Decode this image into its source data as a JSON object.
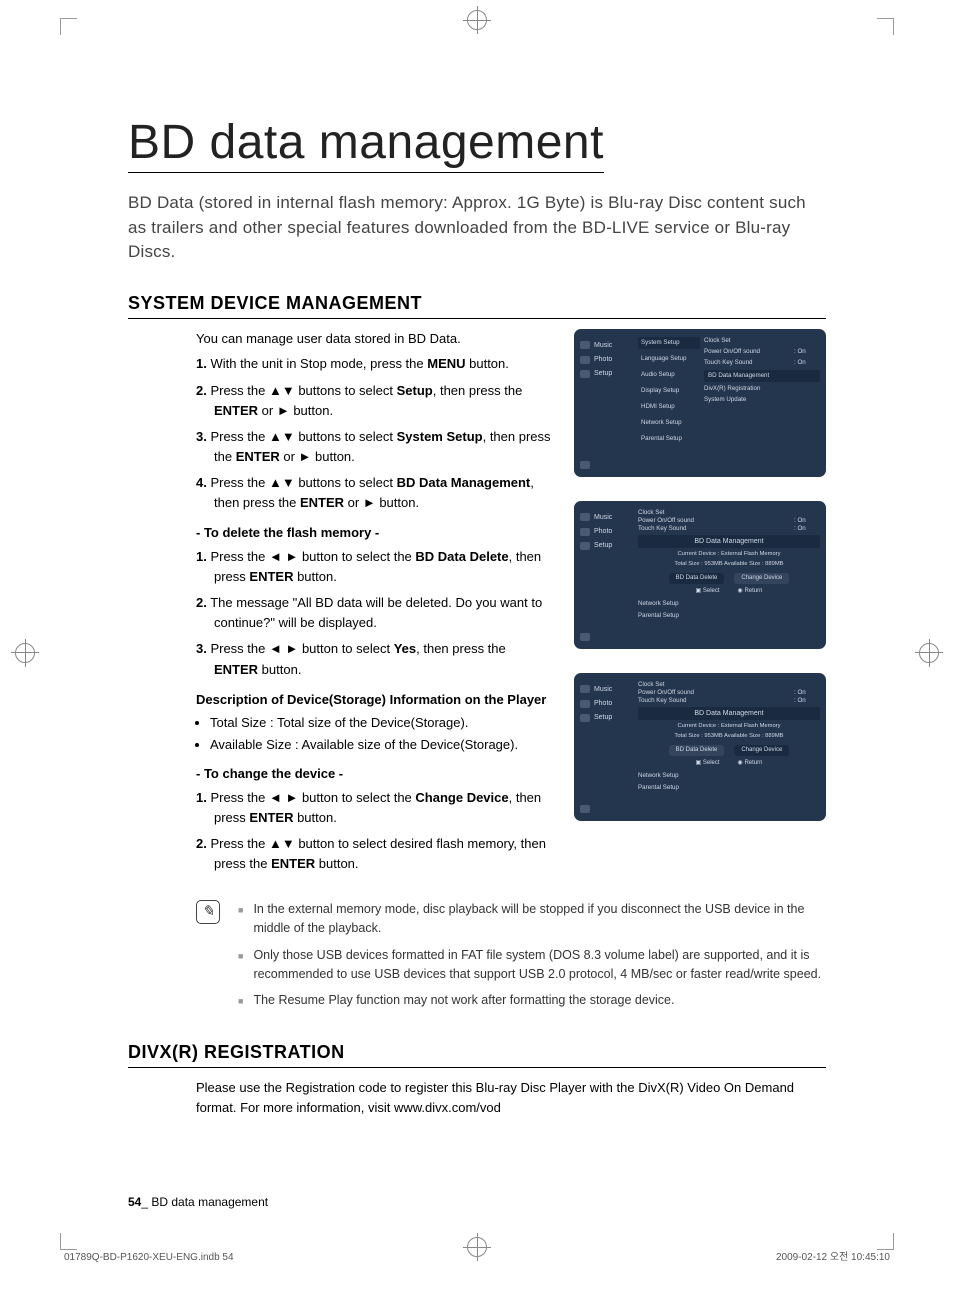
{
  "page": {
    "title": "BD data management",
    "intro": "BD Data (stored in internal flash memory: Approx. 1G Byte) is Blu-ray Disc content such as trailers and other special features downloaded from the BD-LIVE service or Blu-ray Discs.",
    "section1": "SYSTEM DEVICE MANAGEMENT",
    "s1_lead": "You can manage user data stored in BD Data.",
    "steps_main": [
      {
        "n": "1.",
        "t": "With the unit in Stop mode, press the ",
        "b": "MENU",
        "after": " button."
      },
      {
        "n": "2.",
        "t": "Press the ▲▼ buttons to select ",
        "b": "Setup",
        "after": ", then press the ",
        "b2": "ENTER",
        "after2": " or ► button."
      },
      {
        "n": "3.",
        "t": "Press the ▲▼ buttons to select ",
        "b": "System Setup",
        "after": ", then press the ",
        "b2": "ENTER",
        "after2": " or ► button."
      },
      {
        "n": "4.",
        "t": "Press the ▲▼ buttons to select ",
        "b": "BD Data Management",
        "after": ", then press the  ",
        "b2": "ENTER",
        "after2": " or ► button."
      }
    ],
    "sub_delete": "- To delete the flash memory -",
    "steps_delete": [
      {
        "n": "1.",
        "t": "Press the ◄ ► button to select the ",
        "b": "BD Data Delete",
        "after": ", then press ",
        "b2": "ENTER",
        "after2": " button."
      },
      {
        "n": "2.",
        "t": "The message \"All BD data will be deleted. Do you want to continue?\" will be displayed."
      },
      {
        "n": "3.",
        "t": "Press the ◄ ► button to select ",
        "b": "Yes",
        "after": ", then press the ",
        "b2": "ENTER",
        "after2": " button."
      }
    ],
    "desc_head": "Description of Device(Storage) Information on the Player",
    "desc_items": [
      "Total Size : Total size of the Device(Storage).",
      "Available Size : Available size of the Device(Storage)."
    ],
    "sub_change": "- To change the device -",
    "steps_change": [
      {
        "n": "1.",
        "t": "Press the ◄ ► button to select the ",
        "b": "Change Device",
        "after": ", then press ",
        "b2": "ENTER",
        "after2": " button."
      },
      {
        "n": "2.",
        "t": "Press the ▲▼ button to select desired flash memory, then press the ",
        "b": "ENTER",
        "after": " button."
      }
    ],
    "notes": [
      "In the external memory mode, disc playback will be stopped if you disconnect the USB device in the middle of the playback.",
      "Only those USB devices formatted in FAT file system (DOS 8.3 volume label) are supported, and it is recommended to use USB devices that support USB 2.0 protocol, 4 MB/sec or faster read/write speed.",
      "The Resume Play function may not work after formatting the storage device."
    ],
    "section2": "DIVX(R) REGISTRATION",
    "divx_text": "Please use the Registration code to register this Blu-ray Disc Player with the DivX(R) Video On Demand format. For more information, visit www.divx.com/vod",
    "footer_page": "54",
    "footer_sep": "_ ",
    "footer_title": "BD data management",
    "print_file": "01789Q-BD-P1620-XEU-ENG.indb   54",
    "print_date": "2009-02-12   오전 10:45:10"
  },
  "ss": {
    "side": [
      {
        "label": "Music"
      },
      {
        "label": "Photo"
      },
      {
        "label": "Setup"
      }
    ],
    "usb_icon": "",
    "mid1": [
      "System Setup",
      "Language Setup",
      "Audio Setup",
      "Display Setup",
      "HDMI Setup",
      "Network Setup",
      "Parental Setup"
    ],
    "right1_rows": [
      {
        "lbl": "Clock Set",
        "val": ""
      },
      {
        "lbl": "Power On/Off sound",
        "val": ": On"
      },
      {
        "lbl": "Touch Key Sound",
        "val": ": On"
      }
    ],
    "right1_box": "BD Data Management",
    "right1_after": [
      "DivX(R) Registration",
      "System Update"
    ],
    "bdm_header": "BD Data Management",
    "bdm_info1": "Current Device : External Flash Memory",
    "bdm_info2": "Total Size : 953MB    Available Size : 889MB",
    "bdm_btn1": "BD Data Delete",
    "bdm_btn2": "Change Device",
    "bdm_select": "Select",
    "bdm_return": "Return",
    "bdm_below": [
      "Network Setup",
      "Parental Setup"
    ]
  }
}
